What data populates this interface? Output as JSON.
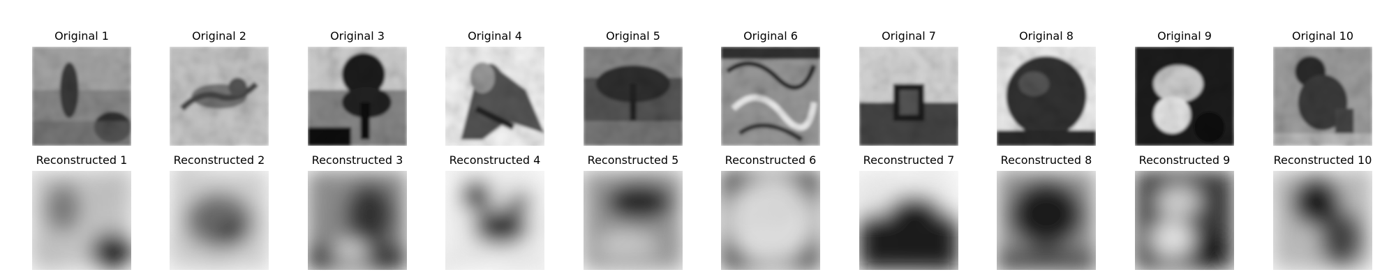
{
  "figure": {
    "rows": [
      {
        "id": "original",
        "panels": [
          {
            "title": "Original 1"
          },
          {
            "title": "Original 2"
          },
          {
            "title": "Original 3"
          },
          {
            "title": "Original 4"
          },
          {
            "title": "Original 5"
          },
          {
            "title": "Original 6"
          },
          {
            "title": "Original 7"
          },
          {
            "title": "Original 8"
          },
          {
            "title": "Original 9"
          },
          {
            "title": "Original 10"
          }
        ]
      },
      {
        "id": "reconstructed",
        "panels": [
          {
            "title": "Reconstructed 1"
          },
          {
            "title": "Reconstructed 2"
          },
          {
            "title": "Reconstructed 3"
          },
          {
            "title": "Reconstructed 4"
          },
          {
            "title": "Reconstructed 5"
          },
          {
            "title": "Reconstructed 6"
          },
          {
            "title": "Reconstructed 7"
          },
          {
            "title": "Reconstructed 8"
          },
          {
            "title": "Reconstructed 9"
          },
          {
            "title": "Reconstructed 10"
          }
        ]
      }
    ],
    "colormap": "grayscale"
  }
}
